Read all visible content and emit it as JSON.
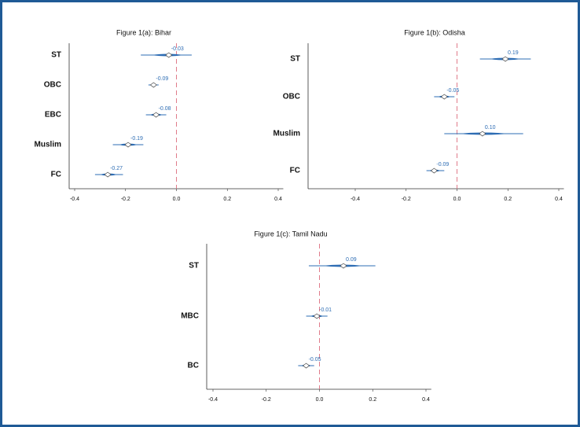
{
  "chart_data": [
    {
      "type": "coefplot",
      "title": "Figure 1(a): Bihar",
      "categories": [
        "ST",
        "OBC",
        "EBC",
        "Muslim",
        "FC"
      ],
      "values": [
        -0.03,
        -0.09,
        -0.08,
        -0.19,
        -0.27
      ],
      "value_labels": [
        "-0.03",
        "-0.09",
        "-0.08",
        "-0.19",
        "-0.27"
      ],
      "lower": [
        -0.14,
        -0.11,
        -0.12,
        -0.25,
        -0.32
      ],
      "upper": [
        0.06,
        -0.07,
        -0.04,
        -0.13,
        -0.21
      ],
      "xlim": [
        -0.42,
        0.42
      ],
      "xticks": [
        -0.4,
        -0.2,
        {
          "value": 0,
          "label": "0.0"
        },
        0.2,
        0.4
      ],
      "color": "#2e6db4",
      "reference_line": 0
    },
    {
      "type": "coefplot",
      "title": "Figure 1(b): Odisha",
      "categories": [
        "ST",
        "OBC",
        "Muslim",
        "FC"
      ],
      "values": [
        0.19,
        -0.05,
        0.1,
        -0.09
      ],
      "value_labels": [
        "0.19",
        "-0.05",
        "0.10",
        "-0.09"
      ],
      "lower": [
        0.09,
        -0.09,
        -0.05,
        -0.12
      ],
      "upper": [
        0.29,
        -0.01,
        0.26,
        -0.05
      ],
      "xlim": [
        -0.42,
        0.42
      ],
      "xticks": [
        -0.4,
        -0.2,
        {
          "value": 0,
          "label": "0.0"
        },
        0.2,
        0.4
      ],
      "color": "#2e6db4",
      "reference_line": 0
    },
    {
      "type": "coefplot",
      "title": "Figure 1(c): Tamil Nadu",
      "categories": [
        "ST",
        "MBC",
        "BC"
      ],
      "values": [
        0.09,
        -0.01,
        -0.05
      ],
      "value_labels": [
        "0.09",
        "-0.01",
        "-0.05"
      ],
      "lower": [
        -0.04,
        -0.05,
        -0.08
      ],
      "upper": [
        0.21,
        0.03,
        -0.02
      ],
      "xlim": [
        -0.42,
        0.42
      ],
      "xticks": [
        -0.4,
        -0.2,
        {
          "value": 0,
          "label": "0.0"
        },
        0.2,
        0.4
      ],
      "color": "#2e6db4",
      "reference_line": 0
    }
  ]
}
